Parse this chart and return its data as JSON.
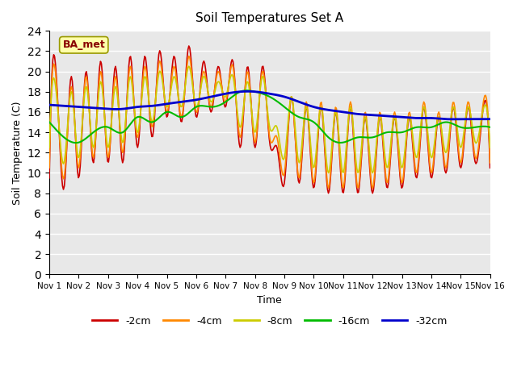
{
  "title": "Soil Temperatures Set A",
  "xlabel": "Time",
  "ylabel": "Soil Temperature (C)",
  "ylim": [
    0,
    24
  ],
  "yticks": [
    0,
    2,
    4,
    6,
    8,
    10,
    12,
    14,
    16,
    18,
    20,
    22,
    24
  ],
  "colors": {
    "-2cm": "#cc0000",
    "-4cm": "#ff8800",
    "-8cm": "#cccc00",
    "-16cm": "#00bb00",
    "-32cm": "#0000cc"
  },
  "legend_label": "BA_met",
  "background_color": "#e8e8e8",
  "grid_color": "#ffffff",
  "annotation_box_color": "#ffffaa",
  "annotation_text_color": "#880000",
  "t2cm_x": [
    1.0,
    1.25,
    1.5,
    1.75,
    2.0,
    2.25,
    2.5,
    2.75,
    3.0,
    3.25,
    3.5,
    3.75,
    4.0,
    4.25,
    4.5,
    4.75,
    5.0,
    5.25,
    5.5,
    5.75,
    6.0,
    6.25,
    6.5,
    6.75,
    7.0,
    7.25,
    7.5,
    7.75,
    8.0,
    8.25,
    8.5,
    8.75,
    9.0,
    9.25,
    9.5,
    9.75,
    10.0,
    10.25,
    10.5,
    10.75,
    11.0,
    11.25,
    11.5,
    11.75,
    12.0,
    12.25,
    12.5,
    12.75,
    13.0,
    13.25,
    13.5,
    13.75,
    14.0,
    14.25,
    14.5,
    14.75,
    15.0,
    15.25,
    15.5,
    15.75,
    16.0
  ],
  "t2cm_y": [
    9.5,
    19.0,
    8.5,
    19.5,
    9.5,
    20.0,
    11.0,
    21.0,
    11.0,
    20.5,
    11.0,
    21.5,
    12.5,
    21.5,
    13.5,
    22.0,
    15.5,
    21.5,
    15.0,
    22.5,
    15.5,
    21.0,
    16.0,
    20.5,
    16.5,
    21.0,
    12.5,
    20.5,
    12.5,
    20.5,
    13.0,
    12.5,
    9.0,
    17.5,
    9.0,
    16.5,
    8.5,
    16.5,
    8.0,
    16.0,
    8.0,
    16.5,
    8.0,
    15.5,
    8.0,
    15.5,
    8.5,
    15.5,
    8.5,
    15.5,
    9.5,
    16.5,
    9.5,
    15.5,
    10.0,
    16.5,
    10.5,
    16.5,
    11.0,
    16.0,
    10.5
  ],
  "t4cm_x": [
    1.0,
    1.25,
    1.5,
    1.75,
    2.0,
    2.25,
    2.5,
    2.75,
    3.0,
    3.25,
    3.5,
    3.75,
    4.0,
    4.25,
    4.5,
    4.75,
    5.0,
    5.25,
    5.5,
    5.75,
    6.0,
    6.25,
    6.5,
    6.75,
    7.0,
    7.25,
    7.5,
    7.75,
    8.0,
    8.25,
    8.5,
    8.75,
    9.0,
    9.25,
    9.5,
    9.75,
    10.0,
    10.25,
    10.5,
    10.75,
    11.0,
    11.25,
    11.5,
    11.75,
    12.0,
    12.25,
    12.5,
    12.75,
    13.0,
    13.25,
    13.5,
    13.75,
    14.0,
    14.25,
    14.5,
    14.75,
    15.0,
    15.25,
    15.5,
    15.75,
    16.0
  ],
  "t4cm_y": [
    10.5,
    18.5,
    9.5,
    18.5,
    10.5,
    19.5,
    11.5,
    20.0,
    11.5,
    19.5,
    12.0,
    20.5,
    13.5,
    20.5,
    14.5,
    21.0,
    16.0,
    20.5,
    15.5,
    21.5,
    16.0,
    20.0,
    16.5,
    20.0,
    17.0,
    20.5,
    13.5,
    20.0,
    13.0,
    20.0,
    13.5,
    13.5,
    10.0,
    17.5,
    9.5,
    17.0,
    9.0,
    17.0,
    8.5,
    16.5,
    8.5,
    17.0,
    8.5,
    16.0,
    8.5,
    16.0,
    9.0,
    16.0,
    9.0,
    16.0,
    10.0,
    17.0,
    10.0,
    16.0,
    10.5,
    17.0,
    11.0,
    17.0,
    11.5,
    16.5,
    11.0
  ],
  "t8cm_x": [
    1.0,
    1.25,
    1.5,
    1.75,
    2.0,
    2.25,
    2.5,
    2.75,
    3.0,
    3.25,
    3.5,
    3.75,
    4.0,
    4.25,
    4.5,
    4.75,
    5.0,
    5.25,
    5.5,
    5.75,
    6.0,
    6.25,
    6.5,
    6.75,
    7.0,
    7.25,
    7.5,
    7.75,
    8.0,
    8.25,
    8.5,
    8.75,
    9.0,
    9.25,
    9.5,
    9.75,
    10.0,
    10.25,
    10.5,
    10.75,
    11.0,
    11.25,
    11.5,
    11.75,
    12.0,
    12.25,
    12.5,
    12.75,
    13.0,
    13.25,
    13.5,
    13.75,
    14.0,
    14.25,
    14.5,
    14.75,
    15.0,
    15.25,
    15.5,
    15.75,
    16.0
  ],
  "t8cm_y": [
    12.5,
    17.5,
    11.0,
    18.0,
    11.5,
    18.5,
    12.5,
    19.0,
    12.5,
    18.5,
    13.0,
    19.5,
    14.0,
    19.5,
    15.0,
    20.0,
    16.5,
    19.5,
    16.5,
    20.5,
    16.5,
    19.5,
    17.0,
    19.0,
    17.5,
    19.5,
    14.5,
    19.0,
    14.0,
    19.5,
    14.5,
    14.5,
    11.5,
    17.5,
    11.0,
    16.5,
    10.5,
    16.5,
    10.0,
    16.0,
    10.0,
    16.5,
    10.0,
    15.5,
    10.0,
    15.5,
    10.5,
    15.5,
    10.5,
    15.5,
    11.5,
    16.5,
    11.5,
    15.5,
    12.0,
    16.5,
    12.5,
    16.5,
    13.0,
    16.0,
    12.5
  ],
  "t16cm_x": [
    1.0,
    1.5,
    2.0,
    2.5,
    3.0,
    3.5,
    4.0,
    4.5,
    5.0,
    5.5,
    6.0,
    6.5,
    7.0,
    7.5,
    8.0,
    8.5,
    9.0,
    9.5,
    10.0,
    10.5,
    11.0,
    11.5,
    12.0,
    12.5,
    13.0,
    13.5,
    14.0,
    14.5,
    15.0,
    15.5,
    16.0
  ],
  "t16cm_y": [
    15.0,
    13.5,
    13.0,
    14.0,
    14.5,
    14.0,
    15.5,
    15.0,
    16.0,
    15.5,
    16.5,
    16.5,
    17.0,
    18.0,
    18.0,
    17.5,
    16.5,
    15.5,
    15.0,
    13.5,
    13.0,
    13.5,
    13.5,
    14.0,
    14.0,
    14.5,
    14.5,
    15.0,
    14.5,
    14.5,
    14.5
  ],
  "t32cm_x": [
    1.0,
    1.5,
    2.0,
    2.5,
    3.0,
    3.5,
    4.0,
    4.5,
    5.0,
    5.5,
    6.0,
    6.5,
    7.0,
    7.5,
    8.0,
    8.5,
    9.0,
    9.5,
    10.0,
    10.5,
    11.0,
    11.5,
    12.0,
    12.5,
    13.0,
    13.5,
    14.0,
    14.5,
    15.0,
    15.5,
    16.0
  ],
  "t32cm_y": [
    16.7,
    16.6,
    16.5,
    16.4,
    16.3,
    16.3,
    16.5,
    16.6,
    16.8,
    17.0,
    17.2,
    17.5,
    17.8,
    18.0,
    18.0,
    17.8,
    17.5,
    17.0,
    16.5,
    16.2,
    16.0,
    15.8,
    15.7,
    15.6,
    15.5,
    15.4,
    15.4,
    15.3,
    15.3,
    15.3,
    15.3
  ]
}
